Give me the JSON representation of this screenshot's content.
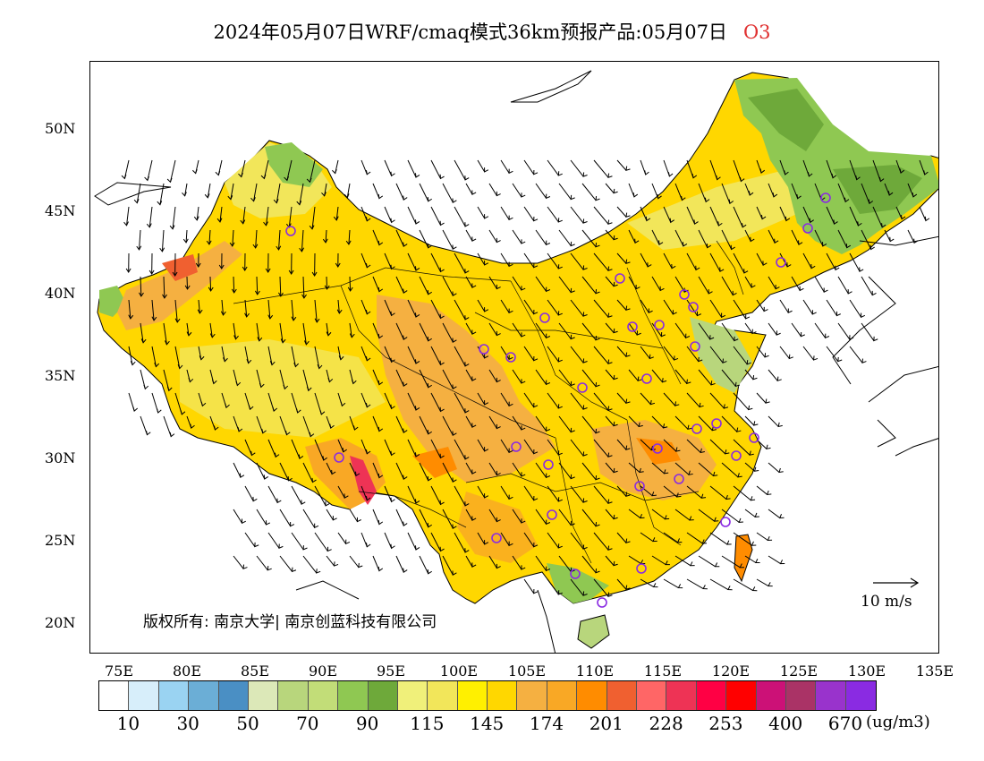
{
  "title": {
    "main": "2024年05月07日WRF/cmaq模式36km预报产品:05月07日",
    "species": "O3"
  },
  "y_axis_labels": [
    "50N",
    "45N",
    "40N",
    "35N",
    "30N",
    "25N",
    "20N"
  ],
  "x_axis_labels": [
    "75E",
    "80E",
    "85E",
    "90E",
    "95E",
    "100E",
    "105E",
    "110E",
    "115E",
    "120E",
    "125E",
    "130E",
    "135E"
  ],
  "copyright": "版权所有: 南京大学| 南京创蓝科技有限公司",
  "vector_scale_label": "10 m/s",
  "colorbar": {
    "colors": [
      "#ffffff",
      "#d7eefa",
      "#9ad3f2",
      "#6baed6",
      "#4a8fc4",
      "#dce8b8",
      "#b8d67c",
      "#c2dd78",
      "#8fc852",
      "#6ea93a",
      "#f0f07a",
      "#f2e65a",
      "#fff000",
      "#ffd700",
      "#f5b041",
      "#f9a825",
      "#ff8c00",
      "#f06030",
      "#ff6666",
      "#ee3355",
      "#ff0044",
      "#ff0000",
      "#cc1177",
      "#aa3366",
      "#9933cc",
      "#8a2be2"
    ],
    "labels": [
      "10",
      "30",
      "50",
      "70",
      "90",
      "115",
      "145",
      "174",
      "201",
      "228",
      "253",
      "400",
      "670"
    ],
    "unit": "(ug/m3)"
  }
}
